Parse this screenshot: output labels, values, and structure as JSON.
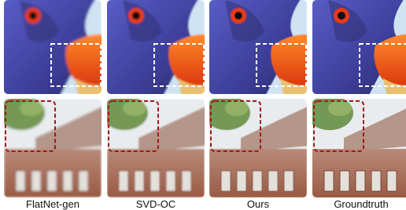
{
  "columns": [
    "FlatNet-gen",
    "SVD-OC",
    "Ours",
    "Groundtruth"
  ]
}
